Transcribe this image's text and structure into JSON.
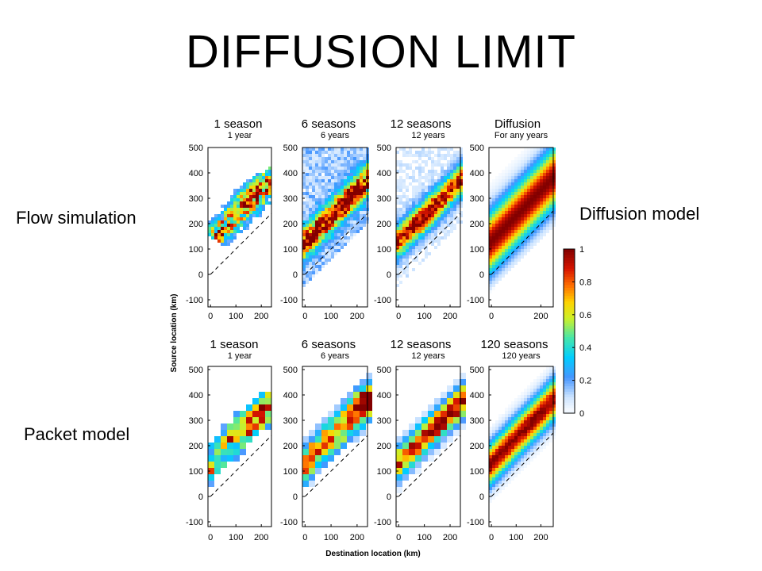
{
  "slide": {
    "title": "DIFFUSION LIMIT",
    "labels": {
      "flow": "Flow simulation",
      "packet": "Packet model",
      "diffusion": "Diffusion model"
    },
    "captions_top": [
      "1 season",
      "6 seasons",
      "12 seasons",
      "Diffusion"
    ],
    "captions_bottom": [
      "1 season",
      "6 seasons",
      "12 seasons",
      "120 seasons"
    ]
  },
  "chart_data": {
    "type": "heatmap",
    "xlabel": "Destination location (km)",
    "ylabel": "Source location (km)",
    "colormap": "jet",
    "colorbar": {
      "ticks": [
        "0",
        "0.2",
        "0.4",
        "0.6",
        "0.8",
        "1"
      ],
      "range": [
        0,
        1
      ]
    },
    "rows": [
      {
        "name": "Flow simulation",
        "panels": [
          {
            "subtitle": "1 year",
            "ylim": [
              -100,
              500
            ],
            "xticks": [
              "0",
              "100",
              "200"
            ],
            "yticks": [
              "-100",
              "0",
              "100",
              "200",
              "300",
              "400",
              "500"
            ]
          },
          {
            "subtitle": "6 years",
            "ylim": [
              -100,
              500
            ],
            "xticks": [
              "0",
              "100",
              "200"
            ],
            "yticks": [
              "-100",
              "0",
              "100",
              "200",
              "300",
              "400",
              "500"
            ]
          },
          {
            "subtitle": "12 years",
            "ylim": [
              -100,
              500
            ],
            "xticks": [
              "0",
              "100",
              "200"
            ],
            "yticks": [
              "-100",
              "0",
              "100",
              "200",
              "300",
              "400",
              "500"
            ]
          },
          {
            "subtitle": "For any years",
            "ylim": [
              -100,
              500
            ],
            "xticks": [
              "0",
              "200"
            ],
            "yticks": [
              "-100",
              "0",
              "100",
              "200",
              "300",
              "400",
              "500"
            ]
          }
        ]
      },
      {
        "name": "Packet model",
        "panels": [
          {
            "subtitle": "1 year",
            "ylim": [
              -100,
              500
            ],
            "xticks": [
              "0",
              "100",
              "200"
            ],
            "yticks": [
              "-100",
              "0",
              "100",
              "200",
              "300",
              "400",
              "500"
            ]
          },
          {
            "subtitle": "6 years",
            "ylim": [
              -100,
              500
            ],
            "xticks": [
              "0",
              "100",
              "200"
            ],
            "yticks": [
              "-100",
              "0",
              "100",
              "200",
              "300",
              "400",
              "500"
            ]
          },
          {
            "subtitle": "12 years",
            "ylim": [
              -100,
              500
            ],
            "xticks": [
              "0",
              "100",
              "200"
            ],
            "yticks": [
              "-100",
              "0",
              "100",
              "200",
              "300",
              "400",
              "500"
            ]
          },
          {
            "subtitle": "120 years",
            "ylim": [
              -100,
              500
            ],
            "xticks": [
              "0",
              "100",
              "200"
            ],
            "yticks": [
              "-100",
              "0",
              "100",
              "200",
              "300",
              "400",
              "500"
            ]
          }
        ]
      }
    ]
  }
}
